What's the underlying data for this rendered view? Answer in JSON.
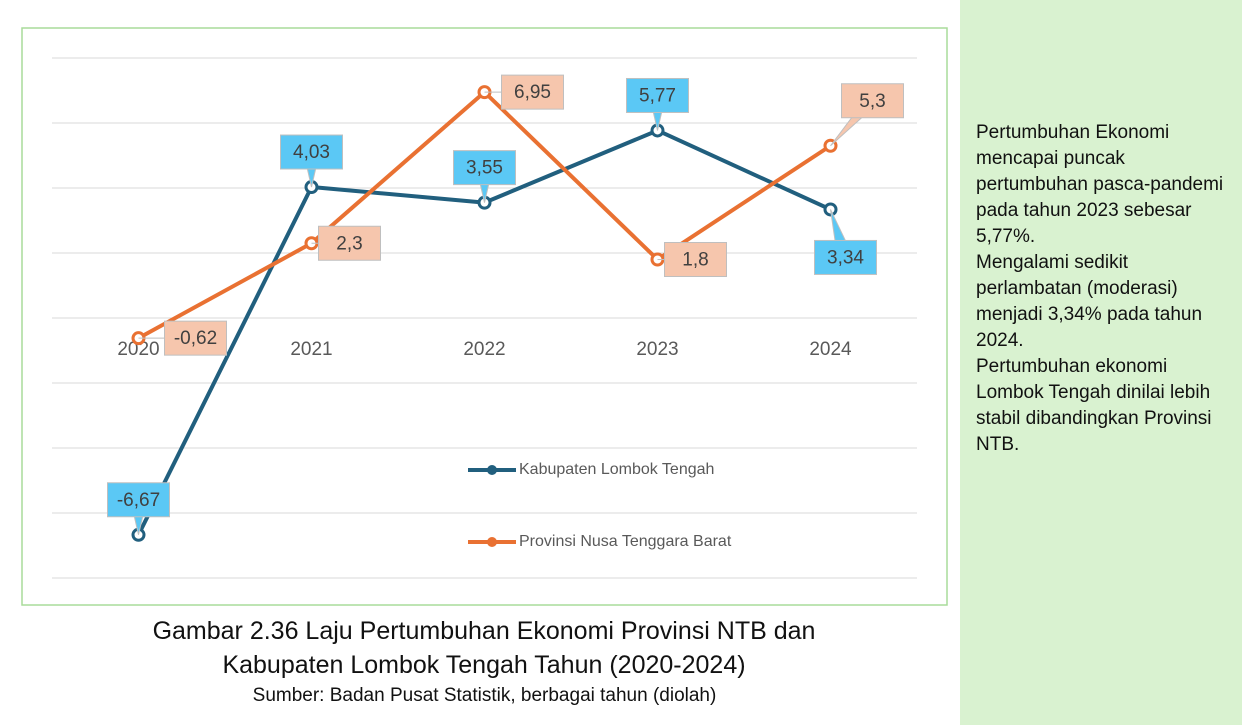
{
  "chart_data": {
    "type": "line",
    "title": "Gambar 2.36 Laju Pertumbuhan Ekonomi Provinsi NTB dan Kabupaten Lombok Tengah Tahun (2020-2024)",
    "source": "Sumber: Badan Pusat Statistik, berbagai tahun (diolah)",
    "categories": [
      "2020",
      "2021",
      "2022",
      "2023",
      "2024"
    ],
    "series": [
      {
        "name": "Kabupaten Lombok Tengah",
        "color": "#215f7e",
        "label_color": "#5bc8f5",
        "values": [
          -6.67,
          4.03,
          3.55,
          5.77,
          3.34
        ],
        "value_labels": [
          "-6,67",
          "4,03",
          "3,55",
          "5,77",
          "3,34"
        ]
      },
      {
        "name": "Provinsi Nusa Tenggara Barat",
        "color": "#e97132",
        "label_color": "#f6c6ad",
        "values": [
          -0.62,
          2.3,
          6.95,
          1.8,
          5.3
        ],
        "value_labels": [
          "-0,62",
          "2,3",
          "6,95",
          "1,8",
          "5,3"
        ]
      }
    ],
    "ylim": [
      -8,
      8
    ],
    "yticks": [
      -8,
      -6,
      -4,
      -2,
      0,
      2,
      4,
      6,
      8
    ],
    "grid": true
  },
  "side_note": [
    "Pertumbuhan Ekonomi mencapai puncak pertumbuhan pasca-pandemi pada tahun 2023 sebesar 5,77%.",
    "Mengalami sedikit perlambatan (moderasi) menjadi 3,34% pada tahun 2024.",
    "Pertumbuhan ekonomi Lombok Tengah dinilai lebih stabil dibandingkan Provinsi NTB."
  ]
}
